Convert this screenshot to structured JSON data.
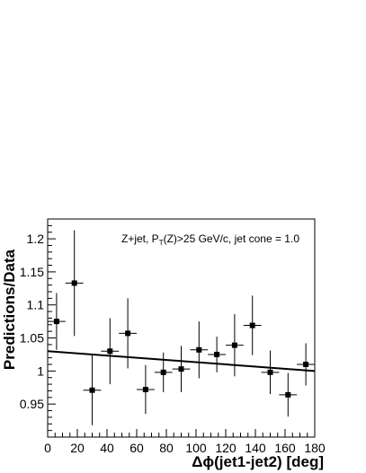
{
  "chart_data": {
    "type": "scatter",
    "xlabel": "Δϕ(jet1-jet2) [deg]",
    "ylabel": "Predictions/Data",
    "xlim": [
      0,
      180
    ],
    "ylim": [
      0.9,
      1.23
    ],
    "x_ticks": [
      "0",
      "20",
      "40",
      "60",
      "80",
      "100",
      "120",
      "140",
      "160",
      "180"
    ],
    "y_ticks": [
      "0.95",
      "1",
      "1.05",
      "1.1",
      "1.15",
      "1.2"
    ],
    "grid": false,
    "annotation": {
      "prefix": "Z+jet, P",
      "sub": "T",
      "suffix": "(Z)>25 GeV/c, jet cone = 1.0"
    },
    "series": [
      {
        "marker": "square",
        "color": "#000000",
        "points": [
          {
            "x": 6,
            "y": 1.075,
            "xerr": 6,
            "yerr": 0.043
          },
          {
            "x": 18,
            "y": 1.133,
            "xerr": 6,
            "yerr": 0.08
          },
          {
            "x": 30,
            "y": 0.971,
            "xerr": 6,
            "yerr": 0.053
          },
          {
            "x": 42,
            "y": 1.03,
            "xerr": 6,
            "yerr": 0.05
          },
          {
            "x": 54,
            "y": 1.057,
            "xerr": 6,
            "yerr": 0.053
          },
          {
            "x": 66,
            "y": 0.972,
            "xerr": 6,
            "yerr": 0.037
          },
          {
            "x": 78,
            "y": 0.998,
            "xerr": 6,
            "yerr": 0.03
          },
          {
            "x": 90,
            "y": 1.003,
            "xerr": 6,
            "yerr": 0.035
          },
          {
            "x": 102,
            "y": 1.032,
            "xerr": 6,
            "yerr": 0.043
          },
          {
            "x": 114,
            "y": 1.025,
            "xerr": 6,
            "yerr": 0.027
          },
          {
            "x": 126,
            "y": 1.039,
            "xerr": 6,
            "yerr": 0.047
          },
          {
            "x": 138,
            "y": 1.069,
            "xerr": 6,
            "yerr": 0.045
          },
          {
            "x": 150,
            "y": 0.998,
            "xerr": 6,
            "yerr": 0.033
          },
          {
            "x": 162,
            "y": 0.964,
            "xerr": 6,
            "yerr": 0.033
          },
          {
            "x": 174,
            "y": 1.01,
            "xerr": 6,
            "yerr": 0.032
          }
        ]
      }
    ],
    "fit_line": {
      "x": [
        0,
        180
      ],
      "y": [
        1.03,
        1.0
      ],
      "color": "#000000"
    }
  }
}
